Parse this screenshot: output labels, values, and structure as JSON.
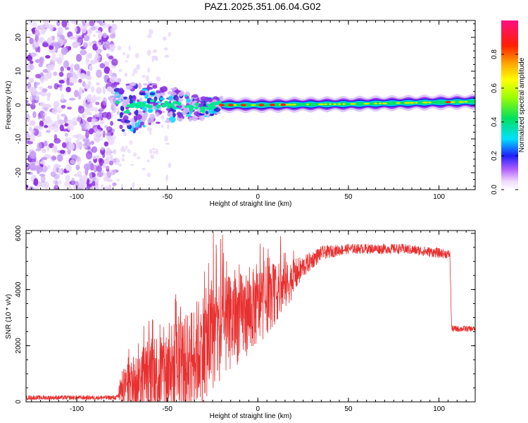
{
  "title": "PAZ1.2025.351.06.04.G02",
  "chart_data": [
    {
      "type": "heatmap",
      "title": "PAZ1.2025.351.06.04.G02",
      "xlabel": "Height of straight line (km)",
      "ylabel": "Frequency (Hz)",
      "xlim": [
        -128,
        120
      ],
      "ylim": [
        -25,
        25
      ],
      "xticks": [
        -100,
        -50,
        0,
        50,
        100
      ],
      "yticks": [
        -20,
        -10,
        0,
        10,
        20
      ],
      "colorbar": {
        "label": "Normalized spectral amplitude",
        "range": [
          0,
          1
        ],
        "ticks": [
          "0.0",
          "0.2",
          "0.4",
          "0.6",
          "0.8"
        ]
      },
      "ridge": {
        "description_regions": [
          "noise",
          "scattered",
          "stable"
        ],
        "noise_x_range": [
          -128,
          -78
        ],
        "scattered_x_range": [
          -78,
          -20
        ],
        "stable_x_range": [
          -20,
          120
        ],
        "center_frequency_hz": [
          {
            "x": -75,
            "f": -1.5
          },
          {
            "x": -60,
            "f": 0.5
          },
          {
            "x": -45,
            "f": 0.0
          },
          {
            "x": -30,
            "f": -1.0
          },
          {
            "x": -20,
            "f": 0.0
          },
          {
            "x": 0,
            "f": 0.0
          },
          {
            "x": 50,
            "f": 0.3
          },
          {
            "x": 100,
            "f": 0.8
          },
          {
            "x": 120,
            "f": 1.0
          }
        ],
        "peak_x_positions": [
          -20,
          -15,
          -8,
          2,
          8,
          14,
          105
        ]
      }
    },
    {
      "type": "line",
      "xlabel": "Height of straight line (km)",
      "ylabel": "SNR (10 * v/v)",
      "xlim": [
        -128,
        120
      ],
      "ylim": [
        0,
        6100
      ],
      "xticks": [
        -100,
        -50,
        0,
        50,
        100
      ],
      "yticks": [
        0,
        2000,
        4000,
        6000
      ],
      "color": "#e83030",
      "series": [
        {
          "name": "SNR",
          "envelope": [
            {
              "x": -128,
              "base": 150,
              "amp": 80
            },
            {
              "x": -78,
              "base": 150,
              "amp": 80
            },
            {
              "x": -75,
              "base": 500,
              "amp": 600
            },
            {
              "x": -60,
              "base": 900,
              "amp": 1500
            },
            {
              "x": -40,
              "base": 1300,
              "amp": 1800
            },
            {
              "x": -30,
              "base": 2000,
              "amp": 2000
            },
            {
              "x": -20,
              "base": 2600,
              "amp": 1800
            },
            {
              "x": 0,
              "base": 3400,
              "amp": 1400
            },
            {
              "x": 15,
              "base": 4100,
              "amp": 900
            },
            {
              "x": 25,
              "base": 4800,
              "amp": 400
            },
            {
              "x": 35,
              "base": 5300,
              "amp": 250
            },
            {
              "x": 50,
              "base": 5450,
              "amp": 180
            },
            {
              "x": 80,
              "base": 5450,
              "amp": 180
            },
            {
              "x": 100,
              "base": 5300,
              "amp": 180
            },
            {
              "x": 106,
              "base": 5250,
              "amp": 150
            },
            {
              "x": 107,
              "base": 2600,
              "amp": 120
            },
            {
              "x": 120,
              "base": 2600,
              "amp": 100
            }
          ],
          "spikes": [
            {
              "x": -24.5,
              "y": 6050
            },
            {
              "x": -23.0,
              "y": 5600
            },
            {
              "x": -19.5,
              "y": 5950
            },
            {
              "x": -20.5,
              "y": 5800
            },
            {
              "x": 12.5,
              "y": 5900
            },
            {
              "x": -58,
              "y": 2900
            },
            {
              "x": -63,
              "y": 2700
            }
          ]
        }
      ]
    }
  ]
}
